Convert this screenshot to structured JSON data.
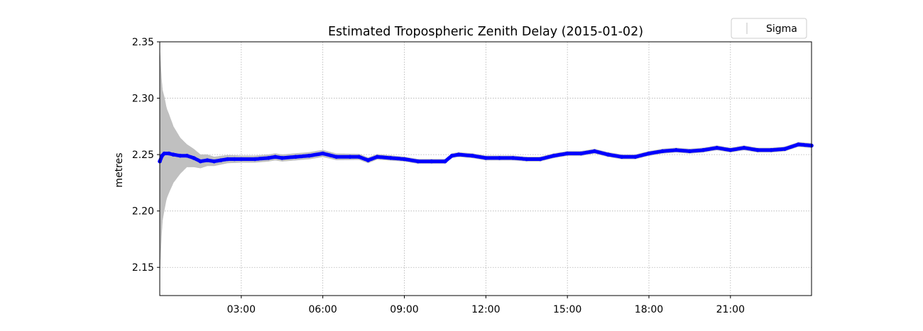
{
  "chart_data": {
    "type": "line",
    "title": "Estimated Tropospheric Zenith Delay (2015-01-02)",
    "xlabel": "",
    "ylabel": "metres",
    "xlim": [
      "00:00",
      "23:59"
    ],
    "ylim": [
      2.125,
      2.35
    ],
    "x_ticks": [
      "03:00",
      "06:00",
      "09:00",
      "12:00",
      "15:00",
      "18:00",
      "21:00"
    ],
    "y_ticks": [
      "2.15",
      "2.20",
      "2.25",
      "2.30",
      "2.35"
    ],
    "grid": true,
    "legend": {
      "position": "top-right",
      "entries": [
        "Sigma"
      ]
    },
    "colors": {
      "line": "#0000ff",
      "sigma": "#c0c0c0",
      "grid": "#b0b0b0"
    },
    "series": [
      {
        "kind": "line",
        "x": [
          "00:00",
          "00:05",
          "00:10",
          "00:20",
          "00:30",
          "00:45",
          "01:00",
          "01:15",
          "01:30",
          "01:45",
          "02:00",
          "02:15",
          "02:30",
          "02:45",
          "03:00",
          "03:30",
          "04:00",
          "04:15",
          "04:30",
          "05:00",
          "05:30",
          "06:00",
          "06:30",
          "07:00",
          "07:20",
          "07:40",
          "08:00",
          "08:30",
          "09:00",
          "09:30",
          "10:00",
          "10:30",
          "10:45",
          "11:00",
          "11:30",
          "12:00",
          "12:30",
          "13:00",
          "13:30",
          "14:00",
          "14:30",
          "15:00",
          "15:30",
          "16:00",
          "16:30",
          "17:00",
          "17:30",
          "18:00",
          "18:30",
          "19:00",
          "19:30",
          "20:00",
          "20:30",
          "21:00",
          "21:30",
          "22:00",
          "22:30",
          "23:00",
          "23:30",
          "23:59"
        ],
        "y": [
          2.244,
          2.249,
          2.251,
          2.251,
          2.25,
          2.249,
          2.249,
          2.247,
          2.244,
          2.245,
          2.244,
          2.245,
          2.246,
          2.246,
          2.246,
          2.246,
          2.247,
          2.248,
          2.247,
          2.248,
          2.249,
          2.251,
          2.248,
          2.248,
          2.248,
          2.245,
          2.248,
          2.247,
          2.246,
          2.244,
          2.244,
          2.244,
          2.249,
          2.25,
          2.249,
          2.247,
          2.247,
          2.247,
          2.246,
          2.246,
          2.249,
          2.251,
          2.251,
          2.253,
          2.25,
          2.248,
          2.248,
          2.251,
          2.253,
          2.254,
          2.253,
          2.254,
          2.256,
          2.254,
          2.256,
          2.254,
          2.254,
          2.255,
          2.259,
          2.258
        ]
      },
      {
        "name": "Sigma",
        "kind": "band",
        "x": [
          "00:00",
          "00:05",
          "00:15",
          "00:30",
          "00:45",
          "01:00",
          "01:15",
          "01:30",
          "02:00",
          "03:00",
          "06:00",
          "09:00",
          "12:00",
          "15:00",
          "18:00",
          "21:00",
          "23:59"
        ],
        "half_width": [
          0.1,
          0.06,
          0.04,
          0.025,
          0.016,
          0.01,
          0.008,
          0.006,
          0.004,
          0.003,
          0.003,
          0.002,
          0.002,
          0.002,
          0.002,
          0.002,
          0.002
        ]
      }
    ]
  }
}
